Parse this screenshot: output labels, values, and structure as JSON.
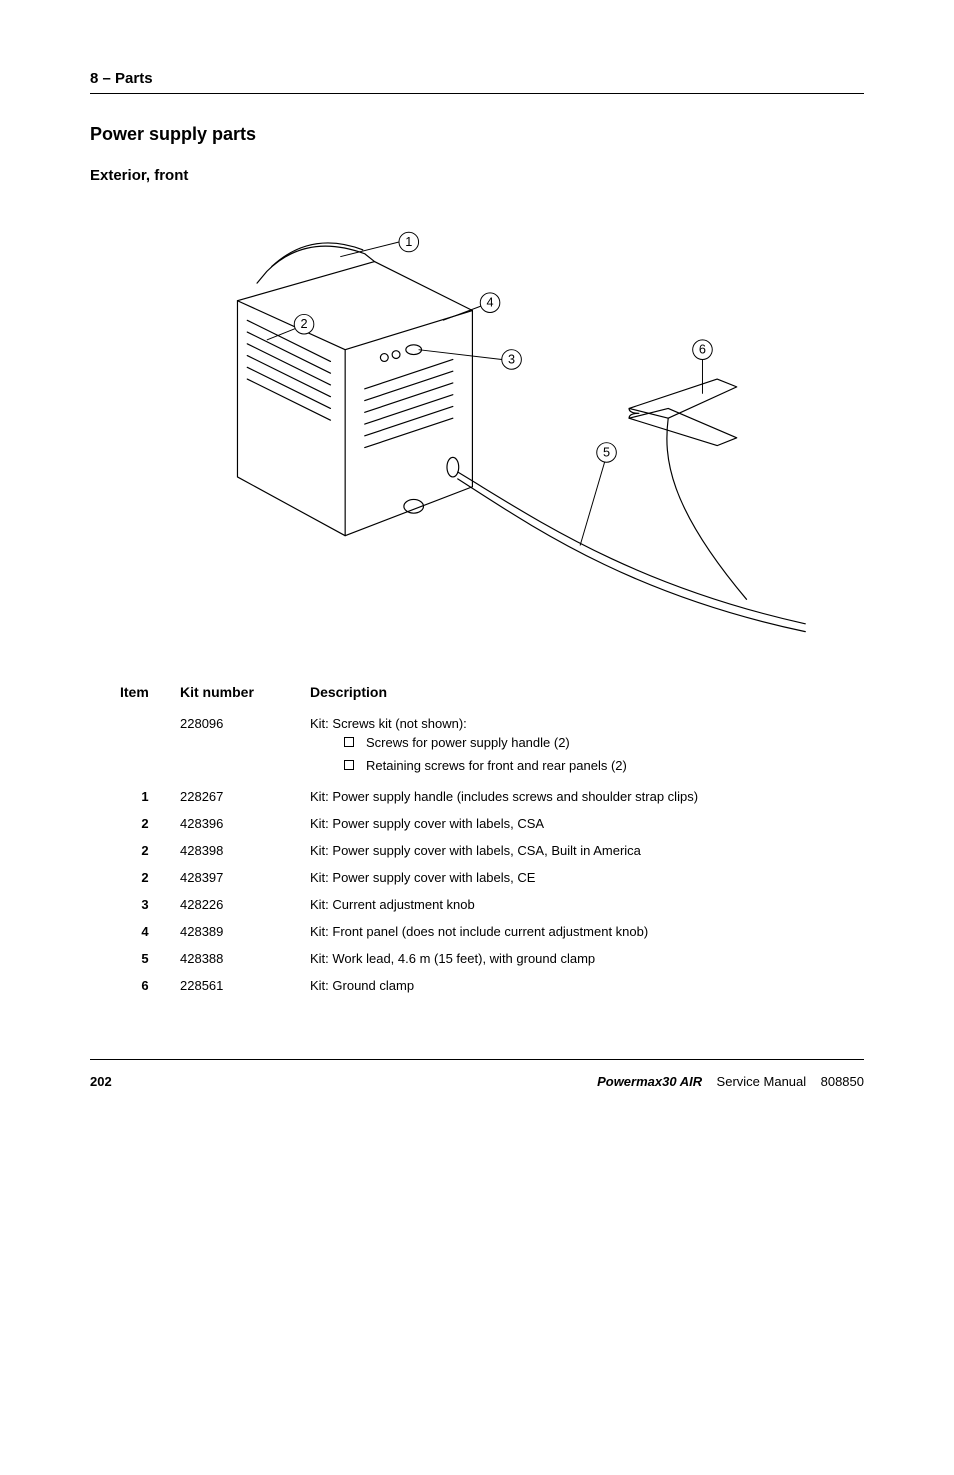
{
  "header": {
    "section": "8 – Parts"
  },
  "title": "Power supply parts",
  "subtitle": "Exterior, front",
  "diagram": {
    "callouts": [
      "1",
      "2",
      "3",
      "4",
      "5",
      "6"
    ],
    "stroke": "#000000",
    "fill": "#ffffff",
    "line_width": 1.2
  },
  "table": {
    "columns": [
      "Item",
      "Kit number",
      "Description"
    ],
    "rows": [
      {
        "item": "",
        "kit": "228096",
        "desc": "Kit: Screws kit (not shown):",
        "subs": [
          "Screws for power supply handle (2)",
          "Retaining screws for front and rear panels (2)"
        ]
      },
      {
        "item": "1",
        "kit": "228267",
        "desc": "Kit: Power supply handle (includes screws and shoulder strap clips)"
      },
      {
        "item": "2",
        "kit": "428396",
        "desc": "Kit: Power supply cover with labels, CSA"
      },
      {
        "item": "2",
        "kit": "428398",
        "desc": "Kit: Power supply cover with labels, CSA, Built in America"
      },
      {
        "item": "2",
        "kit": "428397",
        "desc": "Kit: Power supply cover with labels, CE"
      },
      {
        "item": "3",
        "kit": "428226",
        "desc": "Kit: Current adjustment knob"
      },
      {
        "item": "4",
        "kit": "428389",
        "desc": "Kit: Front panel (does not include current adjustment knob)"
      },
      {
        "item": "5",
        "kit": "428388",
        "desc": "Kit: Work lead, 4.6 m (15 feet), with ground clamp"
      },
      {
        "item": "6",
        "kit": "228561",
        "desc": "Kit: Ground clamp"
      }
    ]
  },
  "footer": {
    "page": "202",
    "product": "Powermax30 AIR",
    "doc_type": "Service Manual",
    "doc_num": "808850"
  }
}
